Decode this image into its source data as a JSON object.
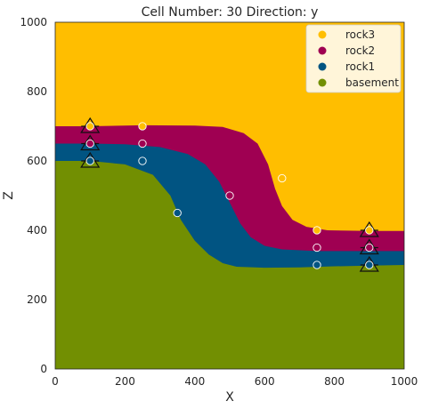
{
  "chart_data": {
    "type": "area",
    "title": "Cell Number: 30 Direction: y",
    "xlabel": "X",
    "ylabel": "Z",
    "xlim": [
      0,
      1000
    ],
    "ylim": [
      0,
      1000
    ],
    "xticks": [
      "0",
      "200",
      "400",
      "600",
      "800",
      "1000"
    ],
    "yticks": [
      "0",
      "200",
      "400",
      "600",
      "800",
      "1000"
    ],
    "grid": false,
    "legend_position": "top-right",
    "series": [
      {
        "name": "rock3",
        "color": "#FFBE00"
      },
      {
        "name": "rock2",
        "color": "#9F0052"
      },
      {
        "name": "rock1",
        "color": "#015482"
      },
      {
        "name": "basement",
        "color": "#728F02"
      }
    ],
    "boundaries": {
      "basement_top": [
        [
          0,
          600
        ],
        [
          100,
          600
        ],
        [
          200,
          590
        ],
        [
          280,
          560
        ],
        [
          330,
          500
        ],
        [
          360,
          430
        ],
        [
          400,
          370
        ],
        [
          440,
          330
        ],
        [
          480,
          305
        ],
        [
          520,
          295
        ],
        [
          600,
          292
        ],
        [
          700,
          293
        ],
        [
          800,
          296
        ],
        [
          900,
          298
        ],
        [
          1000,
          300
        ]
      ],
      "rock1_top": [
        [
          0,
          650
        ],
        [
          100,
          650
        ],
        [
          200,
          648
        ],
        [
          300,
          640
        ],
        [
          380,
          620
        ],
        [
          430,
          590
        ],
        [
          470,
          540
        ],
        [
          500,
          480
        ],
        [
          530,
          420
        ],
        [
          560,
          380
        ],
        [
          600,
          355
        ],
        [
          650,
          345
        ],
        [
          750,
          340
        ],
        [
          850,
          340
        ],
        [
          1000,
          340
        ]
      ],
      "rock2_top": [
        [
          0,
          700
        ],
        [
          100,
          700
        ],
        [
          250,
          703
        ],
        [
          400,
          702
        ],
        [
          480,
          698
        ],
        [
          540,
          680
        ],
        [
          580,
          650
        ],
        [
          610,
          590
        ],
        [
          630,
          520
        ],
        [
          650,
          470
        ],
        [
          680,
          430
        ],
        [
          720,
          410
        ],
        [
          780,
          400
        ],
        [
          900,
          398
        ],
        [
          1000,
          398
        ]
      ]
    },
    "surface_points": [
      {
        "x": 100,
        "z": 700,
        "color": "#FFBE00"
      },
      {
        "x": 250,
        "z": 700,
        "color": "#FFBE00"
      },
      {
        "x": 650,
        "z": 550,
        "color": "#FFBE00"
      },
      {
        "x": 750,
        "z": 400,
        "color": "#FFBE00"
      },
      {
        "x": 900,
        "z": 400,
        "color": "#FFBE00"
      },
      {
        "x": 100,
        "z": 650,
        "color": "#9F0052"
      },
      {
        "x": 250,
        "z": 650,
        "color": "#9F0052"
      },
      {
        "x": 500,
        "z": 500,
        "color": "#9F0052"
      },
      {
        "x": 750,
        "z": 350,
        "color": "#9F0052"
      },
      {
        "x": 900,
        "z": 350,
        "color": "#9F0052"
      },
      {
        "x": 100,
        "z": 600,
        "color": "#015482"
      },
      {
        "x": 250,
        "z": 600,
        "color": "#015482"
      },
      {
        "x": 350,
        "z": 450,
        "color": "#015482"
      },
      {
        "x": 750,
        "z": 300,
        "color": "#015482"
      },
      {
        "x": 900,
        "z": 300,
        "color": "#015482"
      }
    ],
    "orientations": [
      {
        "x": 100,
        "z": 700
      },
      {
        "x": 100,
        "z": 650
      },
      {
        "x": 100,
        "z": 600
      },
      {
        "x": 900,
        "z": 400
      },
      {
        "x": 900,
        "z": 350
      },
      {
        "x": 900,
        "z": 300
      }
    ]
  }
}
